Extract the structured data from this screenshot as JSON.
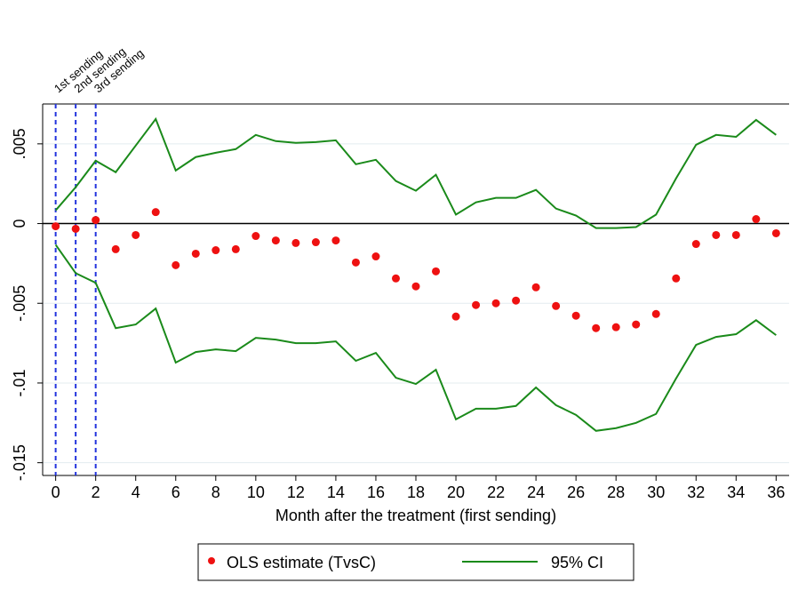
{
  "chart_data": {
    "type": "scatter",
    "x_label": "Month after the treatment (first sending)",
    "x": [
      0,
      1,
      2,
      3,
      4,
      5,
      6,
      7,
      8,
      9,
      10,
      11,
      12,
      13,
      14,
      15,
      16,
      17,
      18,
      19,
      20,
      21,
      22,
      23,
      24,
      25,
      26,
      27,
      28,
      29,
      30,
      31,
      32,
      33,
      34,
      35,
      36
    ],
    "series": [
      {
        "name": "OLS estimate (TvsC)",
        "color": "#ee1111",
        "mark": "dot",
        "values": [
          -0.00017,
          -0.00033,
          0.00022,
          -0.00161,
          -0.00072,
          0.00072,
          -0.00261,
          -0.00189,
          -0.00167,
          -0.00161,
          -0.00078,
          -0.00106,
          -0.00122,
          -0.00117,
          -0.00106,
          -0.00244,
          -0.00206,
          -0.00344,
          -0.00394,
          -0.003,
          -0.00583,
          -0.00511,
          -0.005,
          -0.00483,
          -0.004,
          -0.00517,
          -0.00578,
          -0.00656,
          -0.0065,
          -0.00633,
          -0.00567,
          -0.00344,
          -0.00128,
          -0.00072,
          -0.00072,
          0.00028,
          -0.00061
        ]
      },
      {
        "name": "95% CI",
        "color": "#1a8a1a",
        "mark": "band-lines",
        "upper": [
          0.00083,
          0.00228,
          0.00394,
          0.00322,
          0.00489,
          0.00656,
          0.00333,
          0.00417,
          0.00444,
          0.00467,
          0.00556,
          0.00517,
          0.00506,
          0.00511,
          0.00522,
          0.00372,
          0.004,
          0.00267,
          0.00206,
          0.00306,
          0.00056,
          0.00133,
          0.00161,
          0.00161,
          0.00211,
          0.00094,
          0.0005,
          -0.00028,
          -0.00028,
          -0.00022,
          0.00056,
          0.00283,
          0.00494,
          0.00556,
          0.00544,
          0.0065,
          0.00556
        ],
        "lower": [
          -0.00133,
          -0.00311,
          -0.00372,
          -0.00656,
          -0.00633,
          -0.00533,
          -0.00872,
          -0.00806,
          -0.00789,
          -0.008,
          -0.00717,
          -0.00728,
          -0.0075,
          -0.0075,
          -0.00739,
          -0.00861,
          -0.00811,
          -0.00967,
          -0.01006,
          -0.00917,
          -0.01228,
          -0.01161,
          -0.01161,
          -0.01144,
          -0.01028,
          -0.01139,
          -0.012,
          -0.013,
          -0.01283,
          -0.0125,
          -0.01194,
          -0.00972,
          -0.00761,
          -0.00711,
          -0.00694,
          -0.00606,
          -0.007
        ]
      }
    ],
    "xlim": [
      -0.65,
      36.65
    ],
    "xticks": [
      0,
      2,
      4,
      6,
      8,
      10,
      12,
      14,
      16,
      18,
      20,
      22,
      24,
      26,
      28,
      30,
      32,
      34,
      36
    ],
    "ylim": [
      -0.0158,
      0.0075
    ],
    "yticks": [
      {
        "value": -0.015,
        "label": "-.015"
      },
      {
        "value": -0.01,
        "label": "-.01"
      },
      {
        "value": -0.005,
        "label": "-.005"
      },
      0,
      {
        "value": 0.005,
        "label": ".005"
      }
    ],
    "grid": true,
    "reference_line": 0,
    "annotations": [
      {
        "x": 0,
        "label": "1st sending"
      },
      {
        "x": 1,
        "label": "2nd sending"
      },
      {
        "x": 2,
        "label": "3rd sending"
      }
    ],
    "annotation_color": "#2233dd",
    "legend": "bottom"
  }
}
